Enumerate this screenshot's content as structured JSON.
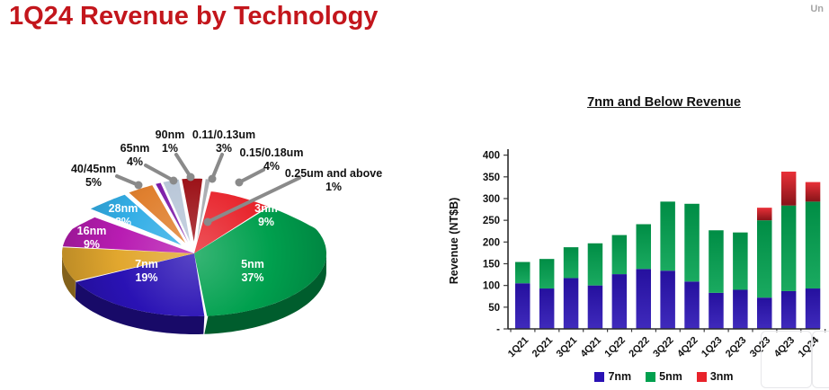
{
  "header": {
    "title": "1Q24 Revenue by Technology",
    "title_color": "#c3161c",
    "watermark": "Un"
  },
  "chart_data": [
    {
      "type": "pie",
      "title": "1Q24 Revenue by Technology",
      "unit": "%",
      "style": "3d-exploded",
      "slices": [
        {
          "label": "3nm",
          "value": 9,
          "color": "#e8232b",
          "exploded": false,
          "label_position": "inside"
        },
        {
          "label": "5nm",
          "value": 37,
          "color": "#00a04e",
          "exploded": false,
          "label_position": "inside"
        },
        {
          "label": "7nm",
          "value": 19,
          "color": "#2a12b4",
          "exploded": false,
          "label_position": "inside"
        },
        {
          "label": "16nm",
          "value": 9,
          "color": "#e2a72e",
          "exploded": false,
          "label_position": "inside"
        },
        {
          "label": "28nm",
          "value": 8,
          "color": "#b81cb2",
          "exploded": false,
          "label_position": "inside"
        },
        {
          "label": "40/45nm",
          "value": 5,
          "color": "#33aee6",
          "exploded": true,
          "label_position": "outside"
        },
        {
          "label": "65nm",
          "value": 4,
          "color": "#e0802f",
          "exploded": true,
          "label_position": "outside"
        },
        {
          "label": "90nm",
          "value": 1,
          "color": "#7d1ca8",
          "exploded": true,
          "label_position": "outside"
        },
        {
          "label": "0.11/0.13um",
          "value": 3,
          "color": "#b9c7d8",
          "exploded": true,
          "label_position": "outside"
        },
        {
          "label": "0.15/0.18um",
          "value": 4,
          "color": "#9c1117",
          "exploded": true,
          "label_position": "outside"
        },
        {
          "label": "0.25um and above",
          "value": 1,
          "color": "#a8abb0",
          "exploded": true,
          "label_position": "outside"
        }
      ]
    },
    {
      "type": "bar",
      "stacked": true,
      "title": "7nm and Below Revenue",
      "ylabel": "Revenue (NT$B)",
      "ylim": [
        0,
        400
      ],
      "ytick_labels": [
        "400",
        "350",
        "300",
        "250",
        "200",
        "150",
        "100",
        "50",
        "-"
      ],
      "grid": false,
      "legend_position": "bottom",
      "categories": [
        "1Q21",
        "2Q21",
        "3Q21",
        "4Q21",
        "1Q22",
        "2Q22",
        "3Q22",
        "4Q22",
        "1Q23",
        "2Q23",
        "3Q23",
        "4Q23",
        "1Q24"
      ],
      "series": [
        {
          "name": "7nm",
          "color": "#2a12b4",
          "values": [
            105,
            93,
            117,
            100,
            126,
            138,
            134,
            109,
            83,
            90,
            72,
            87,
            93
          ]
        },
        {
          "name": "5nm",
          "color": "#00a04e",
          "values": [
            49,
            68,
            71,
            97,
            90,
            103,
            159,
            179,
            144,
            132,
            178,
            197,
            200
          ]
        },
        {
          "name": "3nm",
          "color": "#e8232b",
          "values": [
            0,
            0,
            0,
            0,
            0,
            0,
            0,
            0,
            0,
            0,
            29,
            78,
            45
          ]
        }
      ]
    }
  ]
}
